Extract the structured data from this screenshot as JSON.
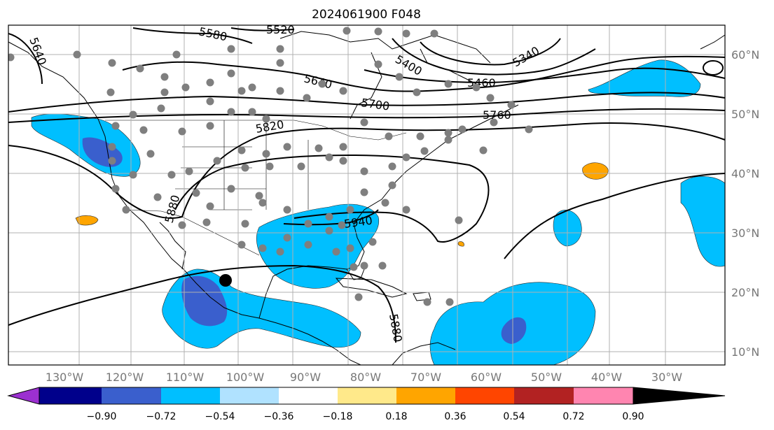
{
  "title": "2024061900 F048",
  "map": {
    "lon_ticks": [
      "130°W",
      "120°W",
      "110°W",
      "100°W",
      "90°W",
      "80°W",
      "70°W",
      "60°W",
      "50°W",
      "40°W",
      "30°W"
    ],
    "lat_ticks": [
      "60°N",
      "50°N",
      "40°N",
      "30°N",
      "20°N",
      "10°N"
    ],
    "contour_labels": [
      "5520",
      "5580",
      "5400",
      "5340",
      "5460",
      "5640",
      "5700",
      "5760",
      "5820",
      "5880",
      "5940",
      "5880",
      "5640"
    ]
  },
  "colorbar": {
    "labels": [
      "−0.90",
      "−0.72",
      "−0.54",
      "−0.36",
      "−0.18",
      "0.18",
      "0.36",
      "0.54",
      "0.72",
      "0.90"
    ],
    "colors": [
      "#9b30d0",
      "#00008b",
      "#3a5fcd",
      "#00bfff",
      "#b0e2ff",
      "#ffffff",
      "#ffe98a",
      "#ffa500",
      "#ff4500",
      "#b22222",
      "#ff85b0"
    ]
  },
  "colors": {
    "light_blue": "#00bfff",
    "mid_blue": "#3a5fcd",
    "orange": "#ffa500",
    "station": "#7f7f7f",
    "grid": "#b0b0b0"
  }
}
